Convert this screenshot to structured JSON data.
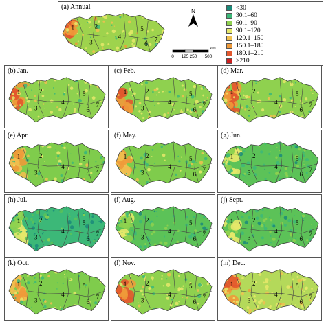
{
  "figure": {
    "annual_panel": {
      "title": "(a) Annual"
    },
    "monthly_panels": [
      {
        "title": "(b) Jan.",
        "palette": "dry"
      },
      {
        "title": "(c) Feb.",
        "palette": "dry"
      },
      {
        "title": "(d) Mar.",
        "palette": "dry"
      },
      {
        "title": "(e) Apr.",
        "palette": "mid"
      },
      {
        "title": "(f) May.",
        "palette": "mid"
      },
      {
        "title": "(g) Jun.",
        "palette": "wet"
      },
      {
        "title": "(h) Jul.",
        "palette": "wettest"
      },
      {
        "title": "(i) Aug.",
        "palette": "wet"
      },
      {
        "title": "(j) Sept.",
        "palette": "wet"
      },
      {
        "title": "(k) Oct.",
        "palette": "mid"
      },
      {
        "title": "(l) Nov.",
        "palette": "dry"
      },
      {
        "title": "(m) Dec.",
        "palette": "driest"
      }
    ],
    "region_labels": [
      "1",
      "2",
      "3",
      "4",
      "5",
      "6",
      "7"
    ],
    "north_label": "N",
    "scale": {
      "ticks": [
        "0",
        "125",
        "250",
        "500"
      ],
      "unit": "km"
    },
    "legend": [
      {
        "label": "<30",
        "color": "#1a8a7a"
      },
      {
        "label": "30.1–60",
        "color": "#3cb878"
      },
      {
        "label": "60.1–90",
        "color": "#8fd14f"
      },
      {
        "label": "90.1–120",
        "color": "#e6e86a"
      },
      {
        "label": "120.1–150",
        "color": "#f0c050"
      },
      {
        "label": "150.1–180",
        "color": "#ee9a3a"
      },
      {
        "label": "180.1–210",
        "color": "#e2582e"
      },
      {
        "label": ">210",
        "color": "#cc1f1f"
      }
    ]
  }
}
